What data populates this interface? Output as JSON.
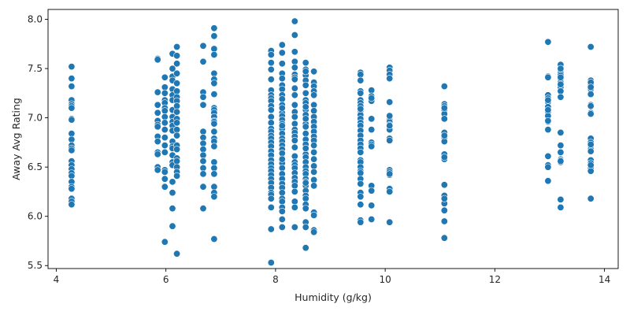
{
  "chart_data": {
    "type": "scatter",
    "title": "",
    "xlabel": "Humidity (g/kg)",
    "ylabel": "Away Avg Rating",
    "xlim": [
      3.85,
      14.25
    ],
    "ylim": [
      5.47,
      8.1
    ],
    "xticks": [
      4,
      6,
      8,
      10,
      12,
      14
    ],
    "yticks": [
      5.5,
      6.0,
      6.5,
      7.0,
      7.5,
      8.0
    ],
    "grid": false,
    "color": "#1f77b4",
    "series": [
      {
        "x": [
          4.28,
          4.28,
          4.28,
          4.28,
          4.28,
          4.28,
          4.28,
          4.28,
          4.28,
          4.28,
          4.28,
          4.28,
          4.28,
          4.28,
          4.28,
          4.28,
          4.28,
          4.28,
          4.28,
          4.28,
          4.28,
          4.28,
          4.28,
          4.28,
          4.28,
          5.85,
          5.85,
          5.85,
          5.85,
          5.85,
          5.85,
          5.85,
          5.85,
          5.85,
          5.85,
          5.85,
          5.85,
          5.85,
          5.85,
          5.98,
          5.98,
          5.98,
          5.98,
          5.98,
          5.98,
          5.98,
          5.98,
          5.98,
          5.98,
          5.98,
          5.98,
          5.98,
          5.98,
          5.98,
          5.98,
          5.98,
          5.98,
          6.12,
          6.12,
          6.12,
          6.12,
          6.12,
          6.12,
          6.12,
          6.12,
          6.12,
          6.12,
          6.12,
          6.12,
          6.12,
          6.12,
          6.12,
          6.12,
          6.12,
          6.12,
          6.12,
          6.12,
          6.12,
          6.12,
          6.2,
          6.2,
          6.2,
          6.2,
          6.2,
          6.2,
          6.2,
          6.2,
          6.2,
          6.2,
          6.2,
          6.2,
          6.2,
          6.2,
          6.2,
          6.2,
          6.2,
          6.2,
          6.2,
          6.2,
          6.2,
          6.2,
          6.68,
          6.68,
          6.68,
          6.68,
          6.68,
          6.68,
          6.68,
          6.68,
          6.68,
          6.68,
          6.68,
          6.68,
          6.68,
          6.68,
          6.68,
          6.88,
          6.88,
          6.88,
          6.88,
          6.88,
          6.88,
          6.88,
          6.88,
          6.88,
          6.88,
          6.88,
          6.88,
          6.88,
          6.88,
          6.88,
          6.88,
          6.88,
          6.88,
          6.88,
          6.88,
          6.88,
          6.88,
          6.88,
          6.88,
          6.88,
          6.88,
          7.92,
          7.92,
          7.92,
          7.92,
          7.92,
          7.92,
          7.92,
          7.92,
          7.92,
          7.92,
          7.92,
          7.92,
          7.92,
          7.92,
          7.92,
          7.92,
          7.92,
          7.92,
          7.92,
          7.92,
          7.92,
          7.92,
          7.92,
          7.92,
          7.92,
          7.92,
          7.92,
          7.92,
          7.92,
          7.92,
          7.92,
          7.92,
          7.92,
          7.92,
          7.92,
          8.12,
          8.12,
          8.12,
          8.12,
          8.12,
          8.12,
          8.12,
          8.12,
          8.12,
          8.12,
          8.12,
          8.12,
          8.12,
          8.12,
          8.12,
          8.12,
          8.12,
          8.12,
          8.12,
          8.12,
          8.12,
          8.12,
          8.12,
          8.12,
          8.12,
          8.12,
          8.12,
          8.12,
          8.12,
          8.12,
          8.12,
          8.12,
          8.12,
          8.12,
          8.12,
          8.12,
          8.12,
          8.12,
          8.12,
          8.12,
          8.35,
          8.35,
          8.35,
          8.35,
          8.35,
          8.35,
          8.35,
          8.35,
          8.35,
          8.35,
          8.35,
          8.35,
          8.35,
          8.35,
          8.35,
          8.35,
          8.35,
          8.35,
          8.35,
          8.35,
          8.35,
          8.35,
          8.35,
          8.35,
          8.35,
          8.35,
          8.35,
          8.35,
          8.35,
          8.35,
          8.35,
          8.55,
          8.55,
          8.55,
          8.55,
          8.55,
          8.55,
          8.55,
          8.55,
          8.55,
          8.55,
          8.55,
          8.55,
          8.55,
          8.55,
          8.55,
          8.55,
          8.55,
          8.55,
          8.55,
          8.55,
          8.55,
          8.55,
          8.55,
          8.55,
          8.55,
          8.55,
          8.55,
          8.55,
          8.55,
          8.55,
          8.55,
          8.55,
          8.55,
          8.55,
          8.55,
          8.55,
          8.55,
          8.55,
          8.55,
          8.7,
          8.7,
          8.7,
          8.7,
          8.7,
          8.7,
          8.7,
          8.7,
          8.7,
          8.7,
          8.7,
          8.7,
          8.7,
          8.7,
          8.7,
          8.7,
          8.7,
          8.7,
          8.7,
          8.7,
          8.7,
          8.7,
          8.7,
          8.7,
          9.55,
          9.55,
          9.55,
          9.55,
          9.55,
          9.55,
          9.55,
          9.55,
          9.55,
          9.55,
          9.55,
          9.55,
          9.55,
          9.55,
          9.55,
          9.55,
          9.55,
          9.55,
          9.55,
          9.55,
          9.55,
          9.55,
          9.55,
          9.55,
          9.55,
          9.55,
          9.55,
          9.55,
          9.55,
          9.55,
          9.55,
          9.55,
          9.75,
          9.75,
          9.75,
          9.75,
          9.75,
          9.75,
          9.75,
          9.75,
          9.75,
          9.75,
          9.75,
          9.75,
          9.75,
          10.08,
          10.08,
          10.08,
          10.08,
          10.08,
          10.08,
          10.08,
          10.08,
          10.08,
          10.08,
          10.08,
          10.08,
          10.08,
          10.08,
          10.08,
          10.08,
          10.08,
          10.08,
          10.08,
          10.08,
          11.08,
          11.08,
          11.08,
          11.08,
          11.08,
          11.08,
          11.08,
          11.08,
          11.08,
          11.08,
          11.08,
          11.08,
          11.08,
          11.08,
          11.08,
          11.08,
          11.08,
          11.08,
          11.08,
          11.08,
          11.08,
          12.97,
          12.97,
          12.97,
          12.97,
          12.97,
          12.97,
          12.97,
          12.97,
          12.97,
          12.97,
          12.97,
          12.97,
          12.97,
          12.97,
          12.97,
          12.97,
          12.97,
          12.97,
          13.2,
          13.2,
          13.2,
          13.2,
          13.2,
          13.2,
          13.2,
          13.2,
          13.2,
          13.2,
          13.2,
          13.2,
          13.2,
          13.2,
          13.2,
          13.2,
          13.2,
          13.2,
          13.2,
          13.2,
          13.2,
          13.75,
          13.75,
          13.75,
          13.75,
          13.75,
          13.75,
          13.75,
          13.75,
          13.75,
          13.75,
          13.75,
          13.75,
          13.75,
          13.75,
          13.75,
          13.75,
          13.75,
          13.75,
          13.75,
          13.75,
          13.75,
          13.75,
          13.75,
          13.75,
          13.75
        ],
        "y": [
          7.52,
          7.4,
          7.32,
          7.18,
          7.14,
          7.12,
          7.1,
          6.99,
          6.98,
          6.84,
          6.78,
          6.72,
          6.69,
          6.67,
          6.56,
          6.52,
          6.48,
          6.44,
          6.41,
          6.35,
          6.3,
          6.28,
          6.18,
          6.15,
          6.12,
          7.6,
          7.59,
          7.26,
          7.13,
          7.05,
          6.97,
          6.93,
          6.91,
          6.81,
          6.76,
          6.65,
          6.63,
          6.5,
          6.47,
          7.41,
          7.31,
          7.25,
          7.18,
          7.15,
          7.1,
          7.07,
          7.01,
          6.95,
          6.88,
          6.8,
          6.72,
          6.65,
          6.47,
          6.45,
          6.38,
          6.3,
          5.74,
          7.65,
          7.5,
          7.42,
          7.38,
          7.29,
          7.23,
          7.18,
          7.08,
          7.01,
          6.96,
          6.92,
          6.87,
          6.76,
          6.71,
          6.69,
          6.62,
          6.55,
          6.52,
          6.35,
          6.24,
          6.08,
          5.9,
          7.72,
          7.63,
          7.55,
          7.45,
          7.35,
          7.27,
          7.21,
          7.17,
          7.12,
          7.06,
          6.99,
          6.95,
          6.88,
          6.82,
          6.72,
          6.68,
          6.59,
          6.56,
          6.5,
          6.45,
          6.41,
          5.62,
          7.73,
          7.57,
          7.26,
          7.21,
          7.13,
          6.86,
          6.8,
          6.74,
          6.68,
          6.62,
          6.56,
          6.49,
          6.43,
          6.3,
          6.08,
          7.91,
          7.83,
          7.7,
          7.64,
          7.45,
          7.39,
          7.35,
          7.24,
          7.1,
          7.08,
          7.05,
          7.01,
          6.97,
          6.96,
          6.94,
          6.86,
          6.79,
          6.76,
          6.71,
          6.55,
          6.49,
          6.43,
          6.3,
          6.24,
          6.2,
          5.77,
          7.68,
          7.64,
          7.56,
          7.49,
          7.39,
          7.28,
          7.23,
          7.2,
          7.17,
          7.12,
          7.08,
          7.01,
          6.95,
          6.89,
          6.86,
          6.82,
          6.79,
          6.75,
          6.71,
          6.66,
          6.62,
          6.57,
          6.53,
          6.49,
          6.46,
          6.42,
          6.38,
          6.34,
          6.29,
          6.24,
          6.22,
          6.18,
          6.09,
          5.87,
          5.53,
          7.74,
          7.66,
          7.55,
          7.45,
          7.4,
          7.33,
          7.29,
          7.23,
          7.19,
          7.13,
          7.05,
          7.02,
          6.98,
          6.94,
          6.89,
          6.84,
          6.79,
          6.76,
          6.72,
          6.68,
          6.64,
          6.59,
          6.57,
          6.54,
          6.49,
          6.43,
          6.38,
          6.33,
          6.29,
          6.24,
          6.18,
          6.15,
          6.09,
          6.05,
          5.97,
          5.89,
          6.64,
          6.58,
          7.1,
          6.92,
          7.98,
          7.84,
          7.67,
          7.57,
          7.51,
          7.44,
          7.41,
          7.39,
          7.3,
          7.23,
          7.13,
          7.06,
          7.01,
          6.94,
          6.88,
          6.85,
          6.81,
          6.77,
          6.7,
          6.61,
          6.55,
          6.52,
          6.49,
          6.44,
          6.39,
          6.35,
          6.31,
          6.25,
          6.15,
          6.09,
          5.89,
          7.56,
          7.49,
          7.43,
          7.38,
          7.33,
          7.25,
          7.18,
          7.15,
          7.08,
          7.03,
          6.98,
          6.94,
          6.91,
          6.84,
          6.78,
          6.73,
          6.68,
          6.63,
          6.6,
          6.55,
          6.5,
          6.46,
          6.43,
          6.38,
          6.35,
          6.31,
          6.26,
          6.21,
          6.18,
          6.12,
          6.08,
          5.94,
          5.89,
          5.68,
          7.47,
          7.11,
          6.99,
          6.69,
          6.34,
          7.47,
          7.36,
          7.32,
          7.27,
          7.23,
          7.13,
          7.07,
          7.01,
          6.96,
          6.91,
          6.86,
          6.81,
          6.77,
          6.72,
          6.65,
          6.58,
          6.51,
          6.45,
          6.37,
          6.31,
          6.04,
          6.01,
          5.86,
          5.84,
          7.46,
          7.44,
          7.38,
          7.27,
          7.25,
          7.18,
          7.15,
          7.12,
          7.07,
          7.03,
          6.99,
          6.95,
          6.92,
          6.87,
          6.82,
          6.77,
          6.73,
          6.69,
          6.65,
          6.57,
          6.55,
          6.5,
          6.46,
          6.44,
          6.38,
          6.33,
          6.24,
          6.2,
          6.12,
          5.96,
          5.94,
          7.09,
          7.28,
          7.22,
          7.17,
          6.99,
          6.88,
          6.75,
          6.73,
          6.71,
          6.31,
          6.26,
          6.11,
          5.97,
          7.2,
          7.51,
          7.48,
          7.44,
          7.4,
          7.16,
          6.98,
          6.96,
          6.93,
          6.88,
          6.79,
          6.77,
          6.47,
          6.45,
          6.42,
          6.28,
          6.25,
          5.94,
          7.02,
          6.92,
          6.43,
          7.32,
          7.14,
          7.12,
          7.08,
          7.04,
          6.99,
          6.85,
          6.8,
          6.76,
          6.63,
          6.58,
          6.32,
          6.21,
          6.13,
          6.06,
          5.95,
          5.78,
          7.1,
          6.82,
          6.6,
          6.18,
          7.77,
          7.42,
          7.41,
          7.23,
          7.2,
          7.16,
          7.11,
          7.06,
          7.02,
          6.96,
          6.88,
          6.61,
          6.52,
          6.5,
          6.36,
          7.18,
          7.08,
          6.97,
          7.54,
          7.48,
          7.45,
          7.43,
          7.39,
          7.36,
          7.31,
          7.27,
          7.21,
          6.85,
          6.72,
          6.58,
          6.57,
          6.55,
          6.17,
          6.09,
          7.5,
          7.34,
          6.56,
          6.65,
          7.41,
          7.72,
          7.38,
          7.35,
          7.33,
          7.29,
          7.24,
          7.13,
          7.05,
          6.79,
          6.75,
          6.72,
          6.7,
          6.68,
          6.57,
          6.54,
          6.49,
          6.46,
          6.18,
          7.36,
          7.31,
          6.73,
          6.66,
          6.52,
          7.04,
          7.12
        ]
      }
    ]
  }
}
